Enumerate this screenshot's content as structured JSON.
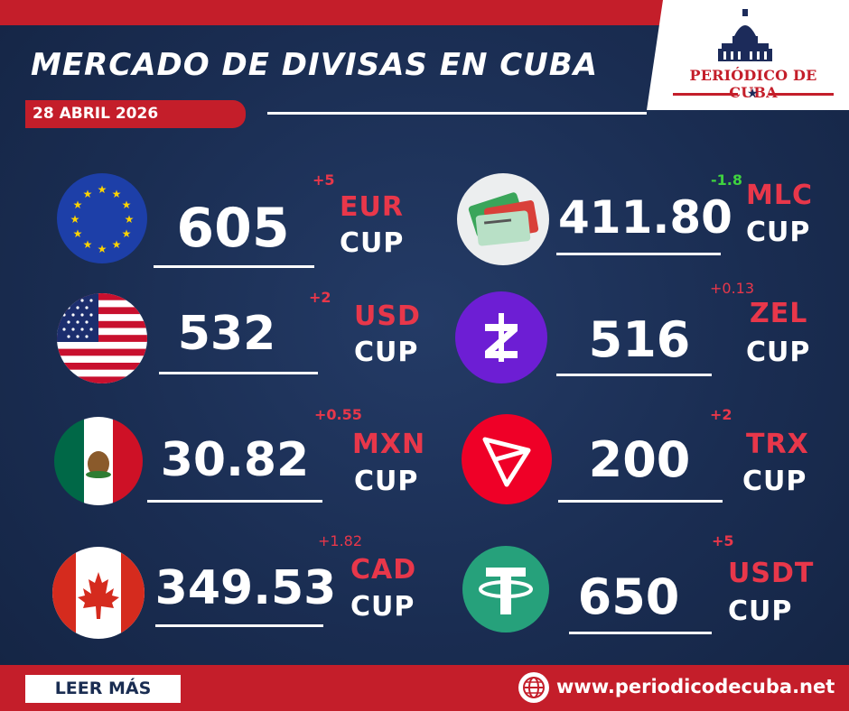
{
  "header": {
    "title": "MERCADO DE DIVISAS EN CUBA",
    "date": "28 ABRIL 2026"
  },
  "logo": {
    "text": "PERIÓDICO DE CUBA",
    "star": "★"
  },
  "rates": [
    {
      "id": "eur",
      "icon": "eu-flag-icon",
      "value": "605",
      "change": "+5",
      "currency": "EUR",
      "unit": "CUP"
    },
    {
      "id": "usd",
      "icon": "us-flag-icon",
      "value": "532",
      "change": "+2",
      "currency": "USD",
      "unit": "CUP"
    },
    {
      "id": "mxn",
      "icon": "mexico-flag-icon",
      "value": "30.82",
      "change": "+0.55",
      "currency": "MXN",
      "unit": "CUP"
    },
    {
      "id": "cad",
      "icon": "canada-flag-icon",
      "value": "349.53",
      "change": "+1.82",
      "currency": "CAD",
      "unit": "CUP"
    },
    {
      "id": "mlc",
      "icon": "mlc-cards-icon",
      "value": "411.80",
      "change": "-1.8",
      "currency": "MLC",
      "unit": "CUP"
    },
    {
      "id": "zel",
      "icon": "zelle-icon",
      "value": "516",
      "change": "+0.13",
      "currency": "ZEL",
      "unit": "CUP"
    },
    {
      "id": "trx",
      "icon": "tron-icon",
      "value": "200",
      "change": "+2",
      "currency": "TRX",
      "unit": "CUP"
    },
    {
      "id": "usdt",
      "icon": "tether-icon",
      "value": "650",
      "change": "+5",
      "currency": "USDT",
      "unit": "CUP"
    }
  ],
  "footer": {
    "button_label": "LEER MÁS",
    "url": "www.periodicodecuba.net",
    "globe_icon": "globe-icon"
  },
  "colors": {
    "background": "#1a2d52",
    "accent_red": "#c41e2a",
    "currency_red": "#e8374a",
    "negative_green": "#3fd23f"
  }
}
